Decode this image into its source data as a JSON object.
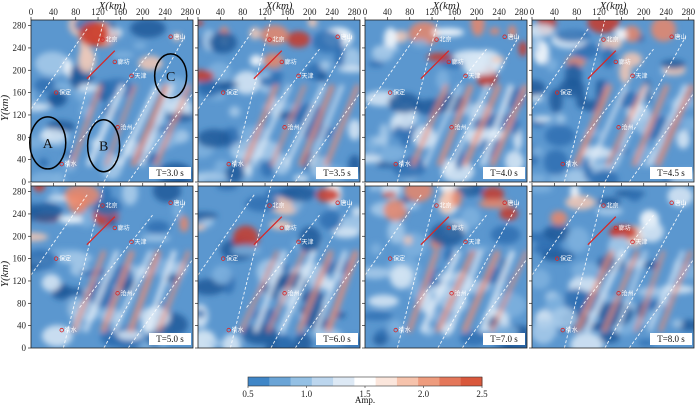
{
  "chart_data": {
    "type": "heatmap",
    "xlabel": "X(km)",
    "ylabel": "Y(km)",
    "x_ticks": [
      0,
      40,
      80,
      120,
      160,
      200,
      240,
      280
    ],
    "y_ticks": [
      0,
      40,
      80,
      120,
      160,
      200,
      240,
      280
    ],
    "xlim": [
      0,
      290
    ],
    "ylim": [
      0,
      290
    ],
    "colorbar": {
      "label": "Amp.",
      "ticks": [
        "0.5",
        "1.0",
        "1.5",
        "2.0",
        "2.5"
      ],
      "range": [
        0.5,
        2.5
      ],
      "colors": [
        "#3f86c7",
        "#6aa4d6",
        "#94c0e4",
        "#bcd6ee",
        "#dde9f5",
        "#ffffff",
        "#fbe6dc",
        "#f6c3ac",
        "#ee9c7e",
        "#e4775a",
        "#d9583c"
      ]
    },
    "panels": [
      {
        "period": "T=3.0 s"
      },
      {
        "period": "T=3.5 s"
      },
      {
        "period": "T=4.0 s"
      },
      {
        "period": "T=4.5 s"
      },
      {
        "period": "T=5.0 s"
      },
      {
        "period": "T=6.0 s"
      },
      {
        "period": "T=7.0 s"
      },
      {
        "period": "T=8.0 s"
      }
    ],
    "annotations": [
      {
        "label": "A",
        "x": 30,
        "y": 70
      },
      {
        "label": "B",
        "x": 130,
        "y": 65
      },
      {
        "label": "C",
        "x": 250,
        "y": 190
      }
    ],
    "cities": [
      {
        "name": "北京",
        "x": 128,
        "y": 255
      },
      {
        "name": "廊坊",
        "x": 150,
        "y": 215
      },
      {
        "name": "天津",
        "x": 180,
        "y": 190
      },
      {
        "name": "唐山",
        "x": 250,
        "y": 260
      },
      {
        "name": "保定",
        "x": 45,
        "y": 160
      },
      {
        "name": "沧州",
        "x": 155,
        "y": 98
      },
      {
        "name": "衡水",
        "x": 55,
        "y": 32
      }
    ]
  }
}
